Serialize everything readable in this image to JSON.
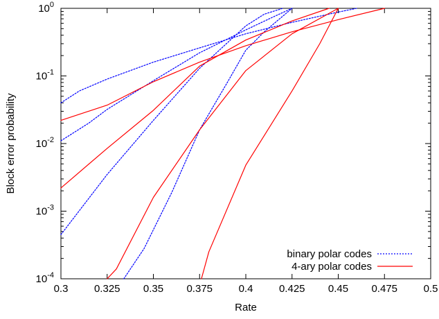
{
  "chart_data": {
    "type": "line",
    "xlabel": "Rate",
    "ylabel": "Block error probability",
    "xlim": [
      0.3,
      0.5
    ],
    "ylim": [
      0.0001,
      1
    ],
    "yscale": "log",
    "grid": false,
    "legend_position": "bottom-right",
    "x_ticks": [
      "0.3",
      "0.325",
      "0.35",
      "0.375",
      "0.4",
      "0.425",
      "0.45",
      "0.475",
      "0.5"
    ],
    "x_tick_values": [
      0.3,
      0.325,
      0.35,
      0.375,
      0.4,
      0.425,
      0.45,
      0.475,
      0.5
    ],
    "y_ticks": [
      {
        "value": 0.0001,
        "base": "10",
        "exp": "-4"
      },
      {
        "value": 0.001,
        "base": "10",
        "exp": "-3"
      },
      {
        "value": 0.01,
        "base": "10",
        "exp": "-2"
      },
      {
        "value": 0.1,
        "base": "10",
        "exp": "-1"
      },
      {
        "value": 1,
        "base": "10",
        "exp": "0"
      }
    ],
    "legend": [
      {
        "label": "binary polar codes",
        "color": "#0000ff",
        "style": "dotted"
      },
      {
        "label": "4-ary polar codes",
        "color": "#ff0000",
        "style": "solid"
      }
    ],
    "series": [
      {
        "group": "binary polar codes",
        "color": "#0000ff",
        "style": "dotted",
        "x": [
          0.3,
          0.31,
          0.325,
          0.35,
          0.375,
          0.4,
          0.425,
          0.45,
          0.46
        ],
        "y": [
          0.04,
          0.06,
          0.09,
          0.16,
          0.26,
          0.42,
          0.62,
          0.88,
          1.0
        ]
      },
      {
        "group": "binary polar codes",
        "color": "#0000ff",
        "style": "dotted",
        "x": [
          0.3,
          0.315,
          0.325,
          0.35,
          0.375,
          0.4,
          0.415,
          0.425
        ],
        "y": [
          0.011,
          0.02,
          0.032,
          0.085,
          0.22,
          0.48,
          0.75,
          1.0
        ]
      },
      {
        "group": "binary polar codes",
        "color": "#0000ff",
        "style": "dotted",
        "x": [
          0.3,
          0.325,
          0.35,
          0.375,
          0.4,
          0.41,
          0.42
        ],
        "y": [
          0.00045,
          0.0035,
          0.022,
          0.13,
          0.55,
          0.82,
          1.0
        ]
      },
      {
        "group": "binary polar codes",
        "color": "#0000ff",
        "style": "dotted",
        "x": [
          0.334,
          0.345,
          0.36,
          0.375,
          0.39,
          0.4,
          0.41,
          0.425
        ],
        "y": [
          0.0001,
          0.00028,
          0.0019,
          0.016,
          0.08,
          0.24,
          0.45,
          1.0
        ]
      },
      {
        "group": "4-ary polar codes",
        "color": "#ff0000",
        "style": "solid",
        "x": [
          0.3,
          0.325,
          0.35,
          0.375,
          0.4,
          0.425,
          0.45,
          0.475
        ],
        "y": [
          0.022,
          0.037,
          0.082,
          0.16,
          0.28,
          0.45,
          0.68,
          1.0
        ]
      },
      {
        "group": "4-ary polar codes",
        "color": "#ff0000",
        "style": "solid",
        "x": [
          0.3,
          0.325,
          0.35,
          0.375,
          0.4,
          0.425,
          0.445
        ],
        "y": [
          0.0022,
          0.0085,
          0.031,
          0.14,
          0.34,
          0.65,
          1.0
        ]
      },
      {
        "group": "4-ary polar codes",
        "color": "#ff0000",
        "style": "solid",
        "x": [
          0.325,
          0.33,
          0.35,
          0.375,
          0.4,
          0.425,
          0.45
        ],
        "y": [
          0.0001,
          0.00014,
          0.0016,
          0.016,
          0.12,
          0.42,
          1.0
        ]
      },
      {
        "group": "4-ary polar codes",
        "color": "#ff0000",
        "style": "solid",
        "x": [
          0.376,
          0.38,
          0.4,
          0.425,
          0.44,
          0.45
        ],
        "y": [
          0.0001,
          0.00025,
          0.0048,
          0.06,
          0.3,
          1.0
        ]
      }
    ]
  }
}
